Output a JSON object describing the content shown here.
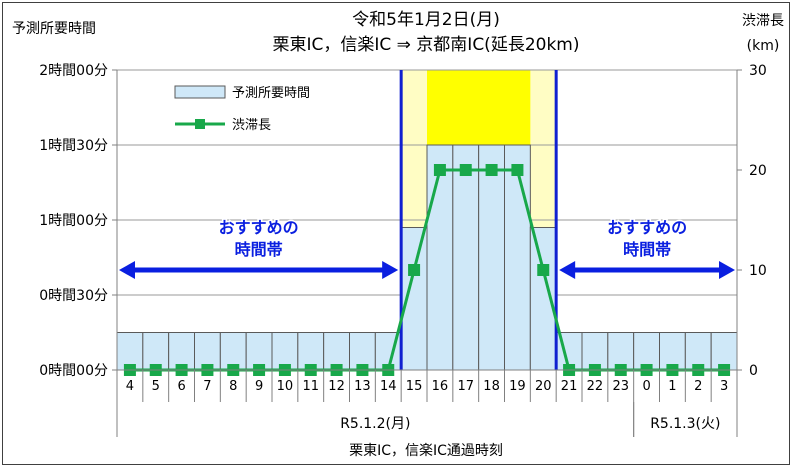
{
  "chart_data": {
    "type": "bar",
    "title_line1": "令和5年1月2日(月)",
    "title_line2": "栗東IC，信楽IC ⇒ 京都南IC(延長20km)",
    "ylabel_left": "予測所要時間",
    "ylabel_right": "渋滞長",
    "ylabel_right_unit": "(km)",
    "xlabel": "栗東IC，信楽IC通過時刻",
    "left_ticks": [
      "0時間00分",
      "0時間30分",
      "1時間00分",
      "1時間30分",
      "2時間00分"
    ],
    "left_range_minutes": [
      0,
      120
    ],
    "right_ticks": [
      "0",
      "10",
      "20",
      "30"
    ],
    "right_range_km": [
      0,
      30
    ],
    "categories": [
      "4",
      "5",
      "6",
      "7",
      "8",
      "9",
      "10",
      "11",
      "12",
      "13",
      "14",
      "15",
      "16",
      "17",
      "18",
      "19",
      "20",
      "21",
      "22",
      "23",
      "0",
      "1",
      "2",
      "3"
    ],
    "series": [
      {
        "name": "予測所要時間",
        "kind": "bar",
        "unit": "minutes",
        "values": [
          15,
          15,
          15,
          15,
          15,
          15,
          15,
          15,
          15,
          15,
          15,
          57,
          90,
          90,
          90,
          90,
          57,
          15,
          15,
          15,
          15,
          15,
          15,
          15
        ]
      },
      {
        "name": "渋滞長",
        "kind": "line",
        "unit": "km",
        "values": [
          0,
          0,
          0,
          0,
          0,
          0,
          0,
          0,
          0,
          0,
          0,
          10,
          20,
          20,
          20,
          20,
          10,
          0,
          0,
          0,
          0,
          0,
          0,
          0
        ]
      }
    ],
    "date_groups": [
      {
        "label": "R5.1.2(月)",
        "from": 0,
        "to": 19
      },
      {
        "label": "R5.1.3(火)",
        "from": 20,
        "to": 23
      }
    ],
    "highlight_window": {
      "from": 11,
      "to": 16,
      "peak_from": 12,
      "peak_to": 15
    },
    "recommend_label_line1": "おすすめの",
    "recommend_label_line2": "時間帯",
    "legend_placement": "top-left",
    "grid": true,
    "colors": {
      "bar": "#cfe8f8",
      "bar_edge": "#5a5a5a",
      "line": "#18a84a",
      "marker": "#18a84a",
      "band_light": "#fffdc4",
      "band_peak": "#ffff00",
      "arrow": "#0a1fe0",
      "boundary": "#1020d0"
    }
  }
}
